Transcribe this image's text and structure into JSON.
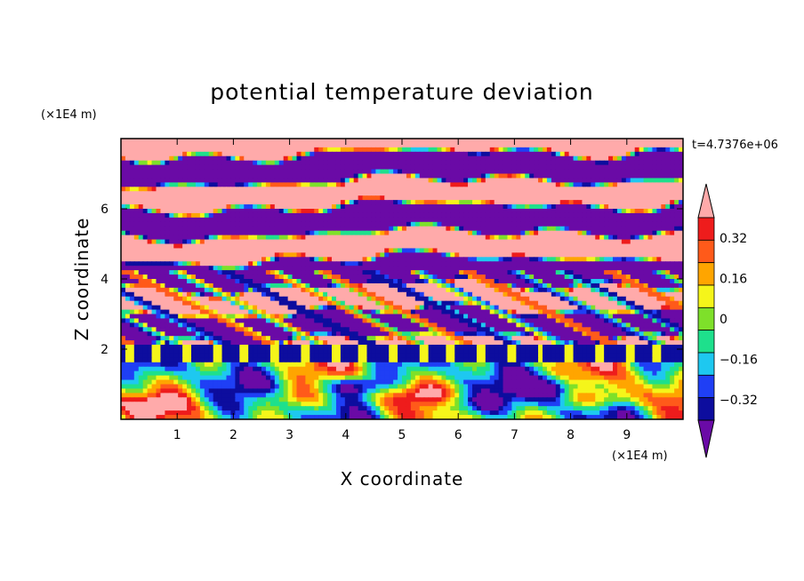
{
  "chart_data": {
    "type": "heatmap",
    "title": "potential temperature deviation",
    "xlabel": "X coordinate",
    "ylabel": "Z coordinate",
    "x_unit": "(×1E4 m)",
    "y_unit": "(×1E4 m)",
    "time_label": "t=4.7376e+06",
    "xlim": [
      0,
      10
    ],
    "ylim": [
      0,
      8
    ],
    "x_ticks": [
      "1",
      "2",
      "3",
      "4",
      "5",
      "6",
      "7",
      "8",
      "9"
    ],
    "y_ticks": [
      "2",
      "4",
      "6"
    ],
    "colorbar": {
      "levels": [
        -0.4,
        -0.32,
        -0.24,
        -0.16,
        -0.08,
        0,
        0.08,
        0.16,
        0.24,
        0.32,
        0.4
      ],
      "tick_labels": [
        "0.32",
        "0.16",
        "0",
        "−0.16",
        "−0.32"
      ],
      "colors": [
        "#6a0aa6",
        "#0d0d9e",
        "#1f3ff5",
        "#1ec8f0",
        "#1ee08c",
        "#7ee02a",
        "#f5f51a",
        "#ffa500",
        "#ff5a1a",
        "#ee1c1c",
        "#ffaaaa"
      ],
      "extend": "both"
    }
  }
}
